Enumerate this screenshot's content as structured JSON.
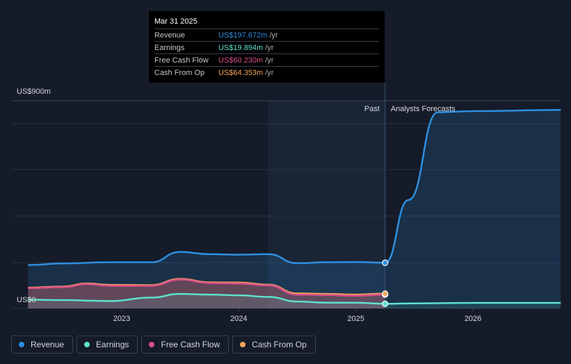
{
  "tooltip": {
    "date": "Mar 31 2025",
    "rows": [
      {
        "name": "Revenue",
        "value": "US$197.672m",
        "unit": "/yr",
        "color": "#2e8fe0"
      },
      {
        "name": "Earnings",
        "value": "US$19.894m",
        "unit": "/yr",
        "color": "#5ee0cc"
      },
      {
        "name": "Free Cash Flow",
        "value": "US$60.230m",
        "unit": "/yr",
        "color": "#d94f8a"
      },
      {
        "name": "Cash From Op",
        "value": "US$64.353m",
        "unit": "/yr",
        "color": "#f0a55a"
      }
    ]
  },
  "labels": {
    "past": "Past",
    "forecast": "Analysts Forecasts"
  },
  "legend": [
    {
      "name": "Revenue",
      "color": "#2e8fe0"
    },
    {
      "name": "Earnings",
      "color": "#5ee0cc"
    },
    {
      "name": "Free Cash Flow",
      "color": "#d94f8a"
    },
    {
      "name": "Cash From Op",
      "color": "#f0a55a"
    }
  ],
  "chart_data": {
    "type": "line",
    "ylim": [
      0,
      900
    ],
    "y_tick_labels": {
      "top": "US$900m",
      "bottom": "US$0"
    },
    "x_ticks": [
      {
        "label": "2023",
        "value": 2023.0
      },
      {
        "label": "2024",
        "value": 2024.0
      },
      {
        "label": "2025",
        "value": 2025.0
      },
      {
        "label": "2026",
        "value": 2026.0
      }
    ],
    "xlim": [
      2022.0,
      2026.75
    ],
    "past_end": 2025.25,
    "grid": true,
    "series": [
      {
        "name": "Revenue",
        "color": "#2e8fe0",
        "fill": true,
        "x": [
          2022.2,
          2022.5,
          2022.9,
          2023.25,
          2023.5,
          2023.75,
          2024.0,
          2024.25,
          2024.5,
          2024.75,
          2025.0,
          2025.25,
          2025.45,
          2025.7,
          2026.0,
          2026.75
        ],
        "y": [
          188,
          195,
          200,
          200,
          245,
          235,
          233,
          235,
          196,
          200,
          201,
          198,
          470,
          850,
          855,
          860
        ]
      },
      {
        "name": "Earnings",
        "color": "#5ee0cc",
        "fill": true,
        "x": [
          2022.2,
          2022.5,
          2022.9,
          2023.25,
          2023.5,
          2023.75,
          2024.0,
          2024.25,
          2024.5,
          2024.75,
          2025.0,
          2025.25,
          2025.5,
          2026.0,
          2026.75
        ],
        "y": [
          38,
          36,
          32,
          47,
          63,
          60,
          57,
          50,
          30,
          25,
          25,
          20,
          22,
          24,
          24
        ]
      },
      {
        "name": "Free Cash Flow",
        "color": "#d94f8a",
        "fill": true,
        "x": [
          2022.2,
          2022.5,
          2022.7,
          2022.9,
          2023.25,
          2023.5,
          2023.75,
          2024.0,
          2024.25,
          2024.5,
          2024.75,
          2025.0,
          2025.25
        ],
        "y": [
          88,
          92,
          105,
          98,
          98,
          125,
          110,
          108,
          100,
          60,
          58,
          55,
          60
        ]
      },
      {
        "name": "Cash From Op",
        "color": "#f0a55a",
        "fill": true,
        "x": [
          2022.2,
          2022.5,
          2022.7,
          2022.9,
          2023.25,
          2023.5,
          2023.75,
          2024.0,
          2024.25,
          2024.5,
          2024.75,
          2025.0,
          2025.25
        ],
        "y": [
          90,
          95,
          108,
          102,
          101,
          128,
          113,
          112,
          103,
          65,
          63,
          60,
          64
        ]
      }
    ],
    "highlight_x": 2025.25
  }
}
